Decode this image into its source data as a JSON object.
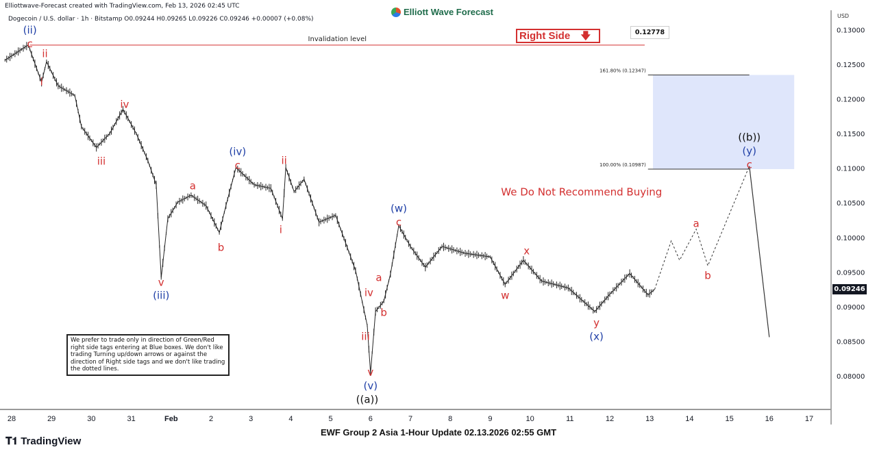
{
  "header": {
    "credit": "Elliottwave-Forecast created with TradingView.com, Feb 13, 2026 02:45 UTC",
    "legend": "Dogecoin / U.S. dollar · 1h · Bitstamp  O0.09244  H0.09265  L0.09226  C0.09246  +0.00007 (+0.08%)",
    "brand": "Elliott Wave Forecast"
  },
  "footer": {
    "title": "EWF Group 2 Asia 1-Hour Update 02.13.2026 02:55 GMT",
    "tradingview": "TradingView",
    "tradingview_logo": "17"
  },
  "note": "We prefer to trade only in direction of Green/Red right side tags entering at Blue boxes. We don't like trading Turning up/down arrows or against the direction of Right side tags and we don't like trading the dotted lines.",
  "right_side": {
    "label": "Right Side",
    "icon": "arrow-down-icon",
    "color": "#d32f2f"
  },
  "chart_data": {
    "type": "line",
    "symbol": "Dogecoin / U.S. dollar",
    "interval": "1h",
    "currency": "USD",
    "current_price": "0.09246",
    "ylim": [
      0.0755,
      0.1325
    ],
    "y_ticks": [
      "0.13000",
      "0.12500",
      "0.12000",
      "0.11500",
      "0.11000",
      "0.10500",
      "0.10000",
      "0.09500",
      "0.09000",
      "0.08500",
      "0.08000"
    ],
    "x_ticks": [
      "28",
      "29",
      "30",
      "31",
      "Feb",
      "2",
      "3",
      "4",
      "5",
      "6",
      "7",
      "8",
      "9",
      "10",
      "11",
      "12",
      "13",
      "14",
      "15",
      "16",
      "17"
    ],
    "x_tick_start": "2026-01-28",
    "grid": false,
    "price_series": [
      [
        "2026-01-27 20:00",
        0.1256
      ],
      [
        "2026-01-28 10:00",
        0.1278
      ],
      [
        "2026-01-28 18:00",
        0.1224
      ],
      [
        "2026-01-28 21:00",
        0.1254
      ],
      [
        "2026-01-29 04:00",
        0.1219
      ],
      [
        "2026-01-29 14:00",
        0.1205
      ],
      [
        "2026-01-29 18:00",
        0.116
      ],
      [
        "2026-01-30 03:00",
        0.113
      ],
      [
        "2026-01-30 11:00",
        0.115
      ],
      [
        "2026-01-30 19:00",
        0.1185
      ],
      [
        "2026-01-31 03:00",
        0.115
      ],
      [
        "2026-01-31 10:00",
        0.1111
      ],
      [
        "2026-01-31 15:00",
        0.1076
      ],
      [
        "2026-01-31 18:00",
        0.0942
      ],
      [
        "2026-01-31 22:00",
        0.1027
      ],
      [
        "2026-02-01 04:00",
        0.1051
      ],
      [
        "2026-02-01 12:00",
        0.1061
      ],
      [
        "2026-02-01 21:00",
        0.1046
      ],
      [
        "2026-02-02 05:00",
        0.1007
      ],
      [
        "2026-02-02 09:00",
        0.1046
      ],
      [
        "2026-02-02 15:00",
        0.1101
      ],
      [
        "2026-02-03 02:00",
        0.1076
      ],
      [
        "2026-02-03 12:00",
        0.1071
      ],
      [
        "2026-02-03 19:00",
        0.1027
      ],
      [
        "2026-02-03 21:00",
        0.1101
      ],
      [
        "2026-02-04 02:00",
        0.1066
      ],
      [
        "2026-02-04 08:00",
        0.1084
      ],
      [
        "2026-02-04 17:00",
        0.1022
      ],
      [
        "2026-02-05 03:00",
        0.1032
      ],
      [
        "2026-02-05 15:00",
        0.0952
      ],
      [
        "2026-02-05 22:00",
        0.0873
      ],
      [
        "2026-02-06 00:00",
        0.0804
      ],
      [
        "2026-02-06 03:00",
        0.0893
      ],
      [
        "2026-02-06 08:00",
        0.0908
      ],
      [
        "2026-02-06 12:00",
        0.0947
      ],
      [
        "2026-02-06 17:00",
        0.1017
      ],
      [
        "2026-02-07 00:00",
        0.0987
      ],
      [
        "2026-02-07 09:00",
        0.0957
      ],
      [
        "2026-02-07 19:00",
        0.0987
      ],
      [
        "2026-02-08 09:00",
        0.0977
      ],
      [
        "2026-02-09 00:00",
        0.0972
      ],
      [
        "2026-02-09 09:00",
        0.0932
      ],
      [
        "2026-02-09 20:00",
        0.0967
      ],
      [
        "2026-02-10 07:00",
        0.0937
      ],
      [
        "2026-02-10 23:00",
        0.0927
      ],
      [
        "2026-02-11 15:00",
        0.0893
      ],
      [
        "2026-02-12 00:00",
        0.0918
      ],
      [
        "2026-02-12 12:00",
        0.0948
      ],
      [
        "2026-02-12 23:00",
        0.0917
      ],
      [
        "2026-02-13 03:00",
        0.0925
      ]
    ],
    "projection_dashed": [
      [
        "2026-02-13 03:00",
        0.0925
      ],
      [
        "2026-02-13 13:00",
        0.0995
      ],
      [
        "2026-02-13 18:00",
        0.0967
      ],
      [
        "2026-02-14 04:00",
        0.1012
      ],
      [
        "2026-02-14 11:00",
        0.0959
      ],
      [
        "2026-02-15 12:00",
        0.1103
      ]
    ],
    "projection_solid": [
      [
        "2026-02-15 12:00",
        0.1103
      ],
      [
        "2026-02-16 00:00",
        0.0856
      ]
    ],
    "invalidation": {
      "label": "Invalidation level",
      "price": 0.12778,
      "price_label": "0.12778",
      "from": "2026-01-28 11:00",
      "to": "2026-02-12 21:00",
      "color": "#d32f2f"
    },
    "blue_box": {
      "from": "2026-02-13 02:00",
      "to": "2026-02-16 15:00",
      "top": 0.12347,
      "bottom": 0.10987,
      "color": "#dfe6fb"
    },
    "fib_levels": [
      {
        "label": "161.80% (0.12347)",
        "price": 0.12347,
        "from": "2026-02-12 23:00",
        "to": "2026-02-15 12:00"
      },
      {
        "label": "100.00% (0.10987)",
        "price": 0.10987,
        "from": "2026-02-12 23:00",
        "to": "2026-02-15 12:00"
      }
    ],
    "colors": {
      "red": "#d32f2f",
      "blue": "#1f3fa6",
      "black": "#111111"
    },
    "annotations": [
      {
        "text": "(ii)",
        "color": "blue",
        "x": "2026-01-28 11:00",
        "y": 0.13232
      },
      {
        "text": "c",
        "color": "red",
        "x": "2026-01-28 11:00",
        "y": 0.12836
      },
      {
        "text": "ii",
        "color": "red",
        "x": "2026-01-28 20:00",
        "y": 0.12648
      },
      {
        "text": "i",
        "color": "red",
        "x": "2026-01-28 18:00",
        "y": 0.12243
      },
      {
        "text": "iv",
        "color": "red",
        "x": "2026-01-30 20:00",
        "y": 0.11916
      },
      {
        "text": "iii",
        "color": "red",
        "x": "2026-01-30 06:00",
        "y": 0.11096
      },
      {
        "text": "v",
        "color": "red",
        "x": "2026-01-31 18:00",
        "y": 0.09345
      },
      {
        "text": "(iii)",
        "color": "blue",
        "x": "2026-01-31 18:00",
        "y": 0.09157
      },
      {
        "text": "a",
        "color": "red",
        "x": "2026-02-01 13:00",
        "y": 0.1074
      },
      {
        "text": "b",
        "color": "red",
        "x": "2026-02-02 06:00",
        "y": 0.09849
      },
      {
        "text": "(iv)",
        "color": "blue",
        "x": "2026-02-02 16:00",
        "y": 0.11234
      },
      {
        "text": "c",
        "color": "red",
        "x": "2026-02-02 16:00",
        "y": 0.11125
      },
      {
        "text": "ii",
        "color": "red",
        "x": "2026-02-03 20:00",
        "y": 0.11106
      },
      {
        "text": "i",
        "color": "red",
        "x": "2026-02-03 18:00",
        "y": 0.10107
      },
      {
        "text": "(w)",
        "color": "blue",
        "x": "2026-02-06 17:00",
        "y": 0.10413
      },
      {
        "text": "c",
        "color": "red",
        "x": "2026-02-06 17:00",
        "y": 0.10285
      },
      {
        "text": "a",
        "color": "red",
        "x": "2026-02-06 05:00",
        "y": 0.09414
      },
      {
        "text": "iv",
        "color": "red",
        "x": "2026-02-05 23:00",
        "y": 0.09197
      },
      {
        "text": "b",
        "color": "red",
        "x": "2026-02-06 08:00",
        "y": 0.0891
      },
      {
        "text": "iii",
        "color": "red",
        "x": "2026-02-05 21:00",
        "y": 0.08564
      },
      {
        "text": "v",
        "color": "red",
        "x": "2026-02-06 00:00",
        "y": 0.07931
      },
      {
        "text": "(v)",
        "color": "blue",
        "x": "2026-02-06 00:00",
        "y": 0.07802
      },
      {
        "text": "((a))",
        "color": "black",
        "x": "2026-02-05 22:00",
        "y": 0.07654
      },
      {
        "text": "x",
        "color": "red",
        "x": "2026-02-09 22:00",
        "y": 0.098
      },
      {
        "text": "w",
        "color": "red",
        "x": "2026-02-09 09:00",
        "y": 0.09157
      },
      {
        "text": "y",
        "color": "red",
        "x": "2026-02-11 16:00",
        "y": 0.08722
      },
      {
        "text": "(x)",
        "color": "blue",
        "x": "2026-02-11 16:00",
        "y": 0.08564
      },
      {
        "text": "a",
        "color": "red",
        "x": "2026-02-14 04:00",
        "y": 0.10196
      },
      {
        "text": "b",
        "color": "red",
        "x": "2026-02-14 11:00",
        "y": 0.09444
      },
      {
        "text": "((b))",
        "color": "black",
        "x": "2026-02-15 12:00",
        "y": 0.11442
      },
      {
        "text": "(y)",
        "color": "blue",
        "x": "2026-02-15 12:00",
        "y": 0.11274
      },
      {
        "text": "c",
        "color": "red",
        "x": "2026-02-15 12:00",
        "y": 0.11115
      }
    ],
    "callout": {
      "text": "We Do Not Recommend Buying",
      "color": "red",
      "x": "2026-02-11 07:00",
      "y": 0.10651
    }
  }
}
